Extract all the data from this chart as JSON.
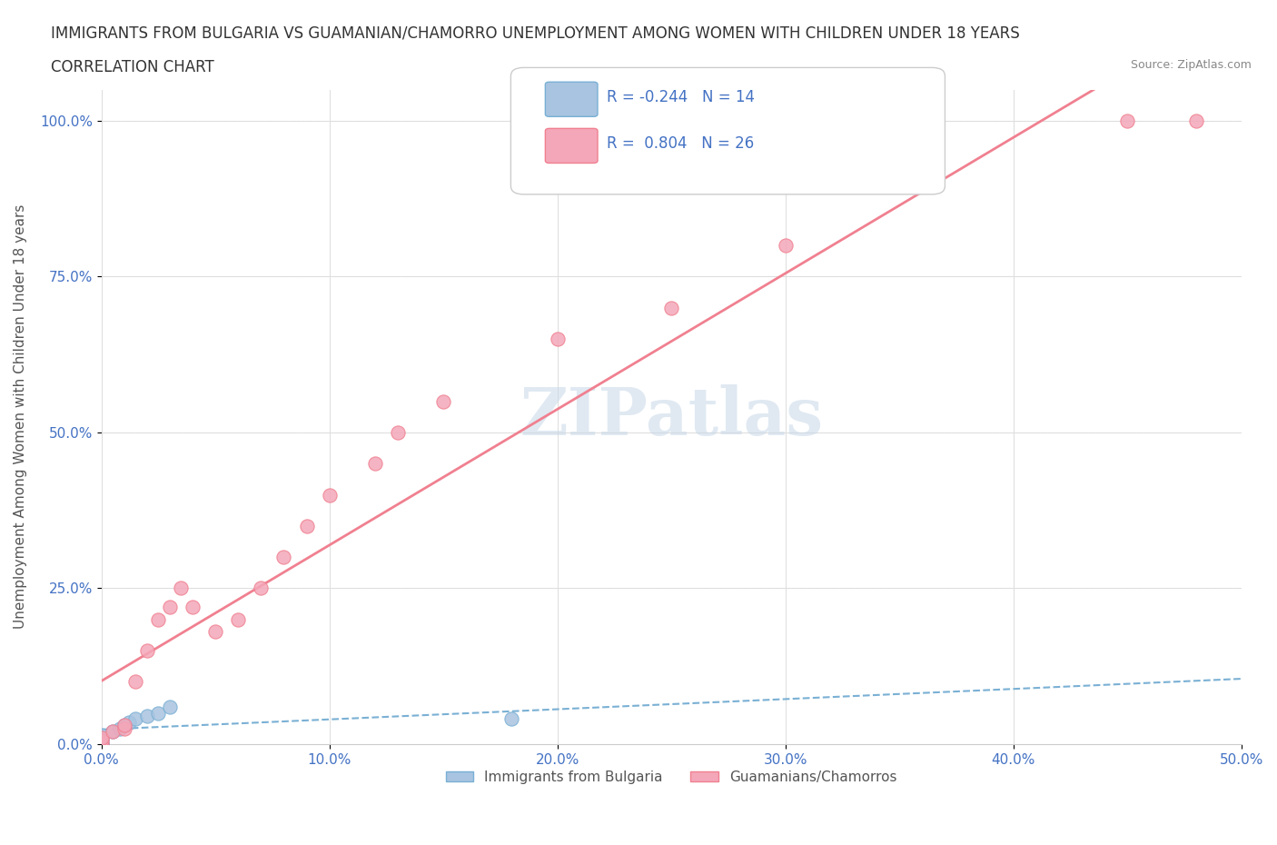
{
  "title_line1": "IMMIGRANTS FROM BULGARIA VS GUAMANIAN/CHAMORRO UNEMPLOYMENT AMONG WOMEN WITH CHILDREN UNDER 18 YEARS",
  "title_line2": "CORRELATION CHART",
  "source_text": "Source: ZipAtlas.com",
  "xlabel_ticks": [
    "0.0%",
    "50.0%"
  ],
  "ylabel_ticks": [
    "0.0%",
    "25.0%",
    "50.0%",
    "75.0%",
    "100.0%"
  ],
  "xlim": [
    0.0,
    0.5
  ],
  "ylim": [
    0.0,
    1.05
  ],
  "watermark": "ZIPatlas",
  "legend_r1": "R = -0.244",
  "legend_n1": "N = 14",
  "legend_r2": "R =  0.804",
  "legend_n2": "N = 26",
  "color_bulgaria": "#a8c4e0",
  "color_guamanian": "#f4a7b9",
  "color_trend_bulgaria": "#7ab0d4",
  "color_trend_guamanian": "#f08090",
  "color_blue_text": "#4472c4",
  "bulgaria_x": [
    0.0,
    0.0,
    0.0,
    0.0,
    0.0,
    0.005,
    0.008,
    0.01,
    0.012,
    0.015,
    0.02,
    0.025,
    0.03,
    0.18
  ],
  "bulgaria_y": [
    0.0,
    0.0,
    0.005,
    0.01,
    0.015,
    0.02,
    0.025,
    0.03,
    0.035,
    0.04,
    0.045,
    0.05,
    0.06,
    0.04
  ],
  "guamanian_x": [
    0.0,
    0.0,
    0.0,
    0.005,
    0.01,
    0.01,
    0.015,
    0.02,
    0.025,
    0.03,
    0.035,
    0.04,
    0.05,
    0.06,
    0.07,
    0.08,
    0.09,
    0.1,
    0.12,
    0.13,
    0.15,
    0.2,
    0.25,
    0.3,
    0.45,
    0.48
  ],
  "guamanian_y": [
    0.0,
    0.005,
    0.01,
    0.02,
    0.025,
    0.03,
    0.1,
    0.15,
    0.2,
    0.22,
    0.25,
    0.22,
    0.18,
    0.2,
    0.25,
    0.3,
    0.35,
    0.4,
    0.45,
    0.5,
    0.55,
    0.65,
    0.7,
    0.8,
    1.0,
    1.0
  ],
  "legend_labels": [
    "Immigrants from Bulgaria",
    "Guamanians/Chamorros"
  ],
  "grid_color": "#dddddd",
  "background_color": "#ffffff"
}
